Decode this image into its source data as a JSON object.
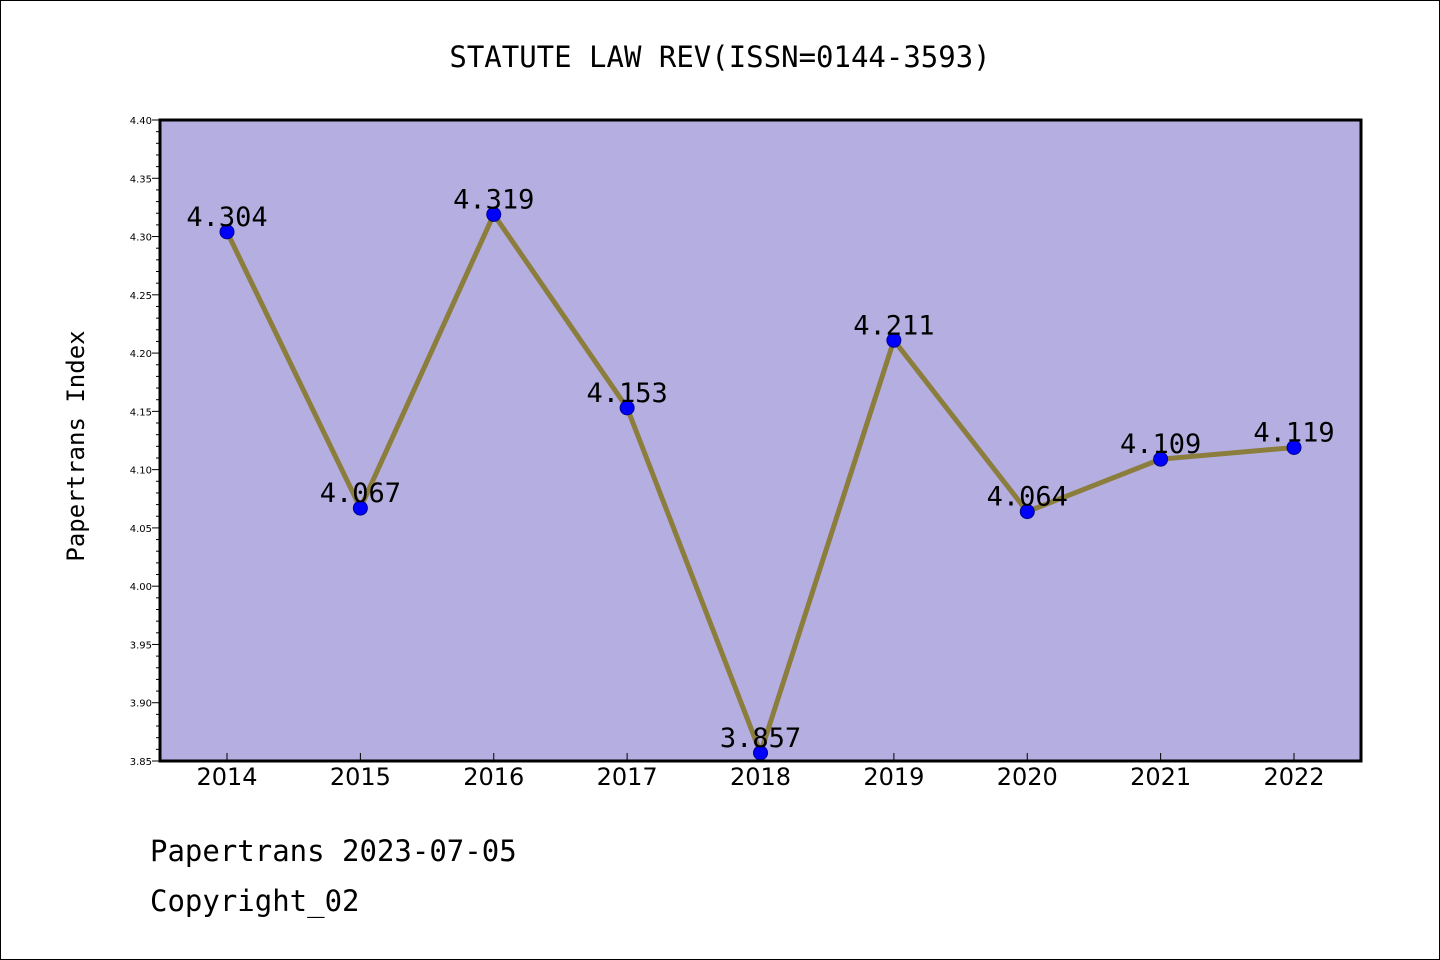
{
  "chart_data": {
    "type": "line",
    "title": "STATUTE LAW REV(ISSN=0144-3593)",
    "xlabel": "",
    "ylabel": "Papertrans Index",
    "categories": [
      "2014",
      "2015",
      "2016",
      "2017",
      "2018",
      "2019",
      "2020",
      "2021",
      "2022"
    ],
    "series": [
      {
        "values": [
          4.304,
          4.067,
          4.319,
          4.153,
          3.857,
          4.211,
          4.064,
          4.109,
          4.119
        ],
        "data_labels": [
          "4.304",
          "4.067",
          "4.319",
          "4.153",
          "3.857",
          "4.211",
          "4.064",
          "4.109",
          "4.119"
        ]
      }
    ],
    "ylim": [
      3.85,
      4.4
    ],
    "yticks": [
      "3.85",
      "3.90",
      "3.95",
      "4.00",
      "4.05",
      "4.10",
      "4.15",
      "4.20",
      "4.25",
      "4.30",
      "4.35",
      "4.40"
    ],
    "grid": false,
    "legend": "none",
    "colors": {
      "plot_background": "#b5aee0",
      "line": "#8b7d3c",
      "marker": "#0000ff"
    }
  },
  "footer": {
    "date_text": "Papertrans 2023-07-05",
    "copyright_text": "Copyright_02"
  }
}
